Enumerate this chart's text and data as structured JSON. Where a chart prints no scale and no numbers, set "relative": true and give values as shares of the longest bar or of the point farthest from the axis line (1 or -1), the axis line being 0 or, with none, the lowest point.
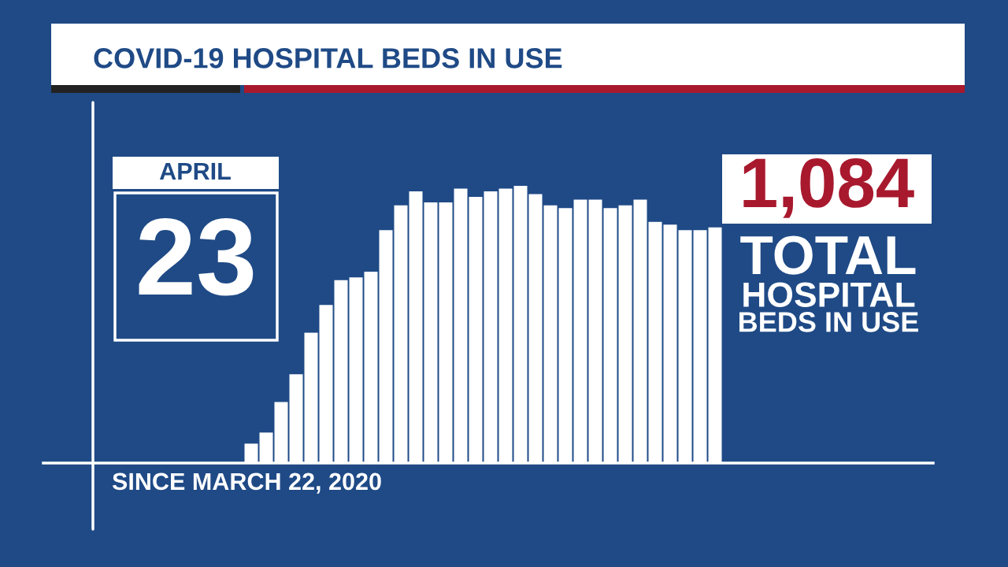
{
  "chart_data": {
    "type": "bar",
    "title": "COVID-19 HOSPITAL BEDS IN USE",
    "relative": true,
    "color": "#ffffff",
    "categories": [
      null,
      null,
      null,
      null,
      null,
      null,
      null,
      null,
      null,
      null,
      null,
      null,
      null,
      null,
      null,
      null,
      null,
      null,
      null,
      null,
      null,
      null,
      null,
      null,
      null,
      null,
      null,
      null,
      null,
      null,
      null,
      null
    ],
    "values": [
      0.07,
      0.11,
      0.22,
      0.32,
      0.47,
      0.57,
      0.66,
      0.67,
      0.69,
      0.84,
      0.93,
      0.98,
      0.94,
      0.94,
      0.99,
      0.96,
      0.98,
      0.99,
      1,
      0.97,
      0.93,
      0.92,
      0.95,
      0.95,
      0.92,
      0.93,
      0.95,
      0.87,
      0.86,
      0.84,
      0.84,
      0.85
    ],
    "annotations": [
      "APRIL",
      "23",
      "1,084",
      "TOTAL",
      "HOSPITAL",
      "BEDS IN USE",
      "SINCE MARCH 22, 2020"
    ]
  }
}
